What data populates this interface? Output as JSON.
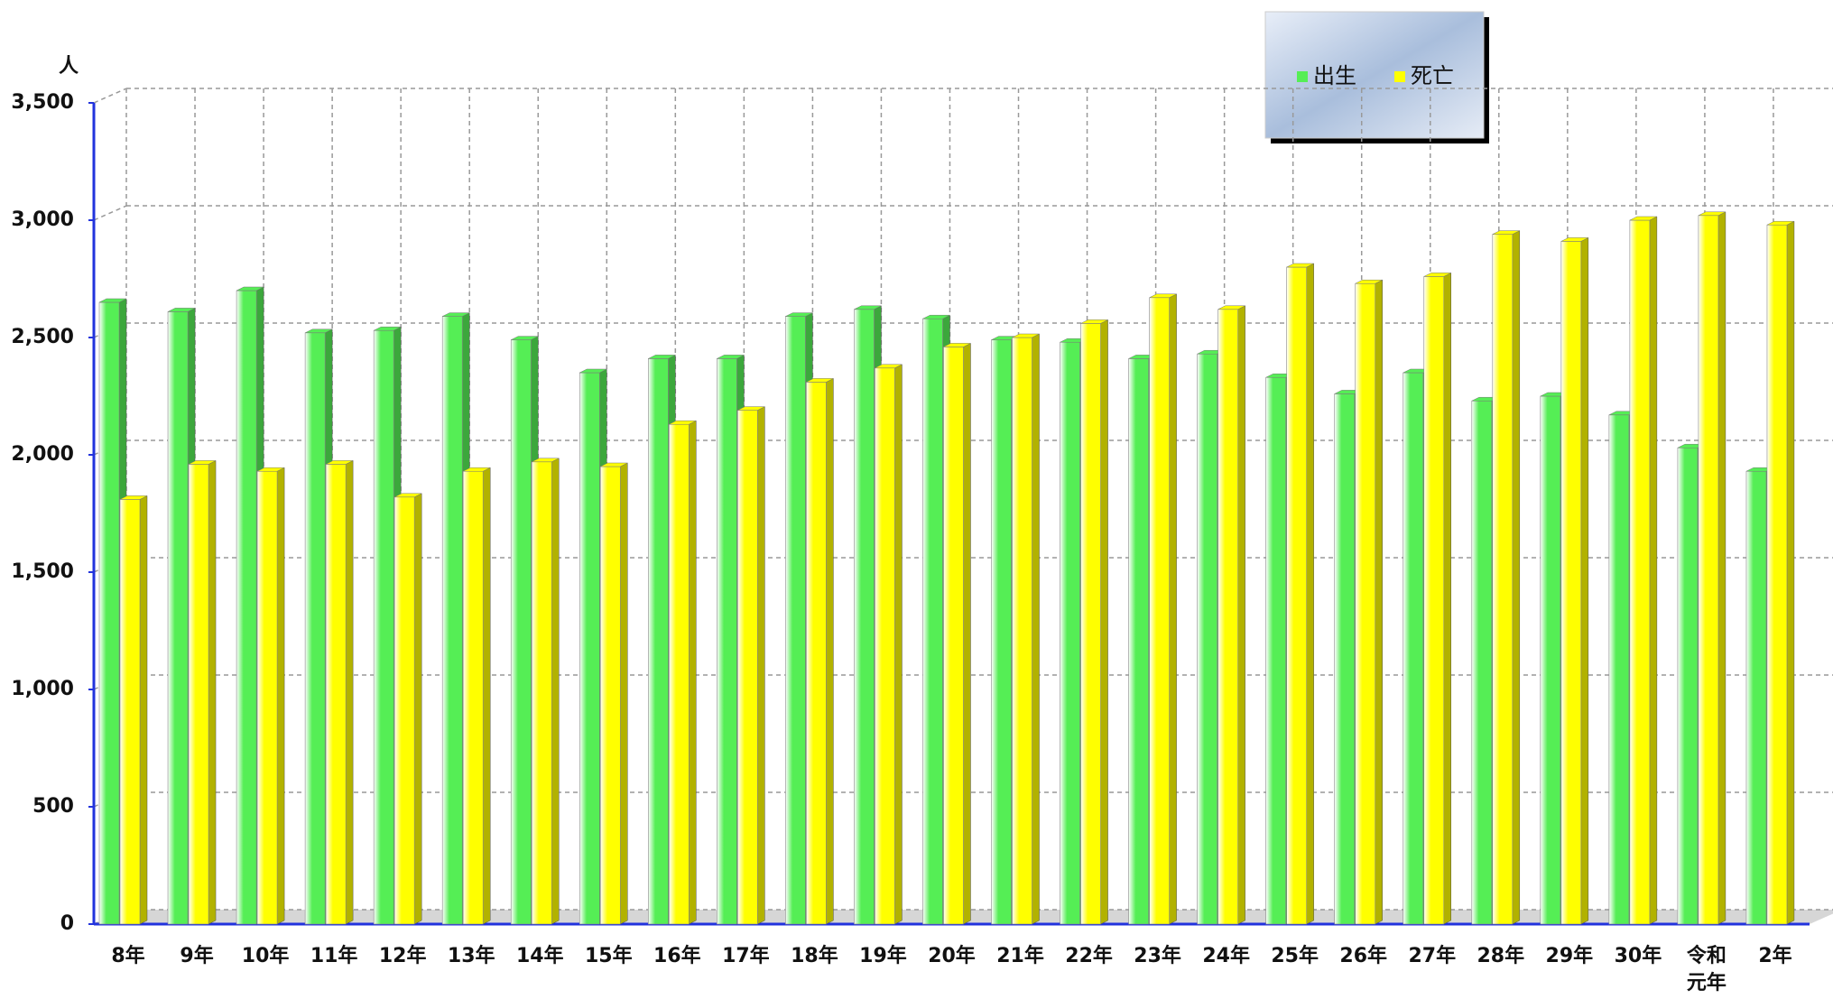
{
  "chart_data": {
    "type": "bar",
    "y_unit": "人",
    "categories": [
      "8年",
      "9年",
      "10年",
      "11年",
      "12年",
      "13年",
      "14年",
      "15年",
      "16年",
      "17年",
      "18年",
      "19年",
      "20年",
      "21年",
      "22年",
      "23年",
      "24年",
      "25年",
      "26年",
      "27年",
      "28年",
      "29年",
      "30年",
      "令和元年",
      "2年"
    ],
    "series": [
      {
        "name": "出生",
        "color": "#55ee55",
        "values": [
          2650,
          2610,
          2700,
          2520,
          2530,
          2590,
          2490,
          2350,
          2410,
          2410,
          2590,
          2620,
          2580,
          2490,
          2480,
          2410,
          2430,
          2330,
          2260,
          2350,
          2230,
          2250,
          2170,
          2030,
          1930
        ]
      },
      {
        "name": "死亡",
        "color": "#ffff00",
        "values": [
          1810,
          1960,
          1930,
          1960,
          1820,
          1930,
          1970,
          1950,
          2130,
          2190,
          2310,
          2370,
          2460,
          2500,
          2560,
          2670,
          2620,
          2800,
          2730,
          2760,
          2940,
          2910,
          3000,
          3020,
          2980
        ]
      }
    ],
    "ylim": [
      0,
      3500
    ],
    "yticks": [
      0,
      500,
      {
        "value": 1000,
        "label": "1,000"
      },
      {
        "value": 1500,
        "label": "1,500"
      },
      {
        "value": 2000,
        "label": "2,000"
      },
      {
        "value": 2500,
        "label": "2,500"
      },
      {
        "value": 3000,
        "label": "3,000"
      },
      {
        "value": 3500,
        "label": "3,500"
      }
    ],
    "grid": true
  }
}
